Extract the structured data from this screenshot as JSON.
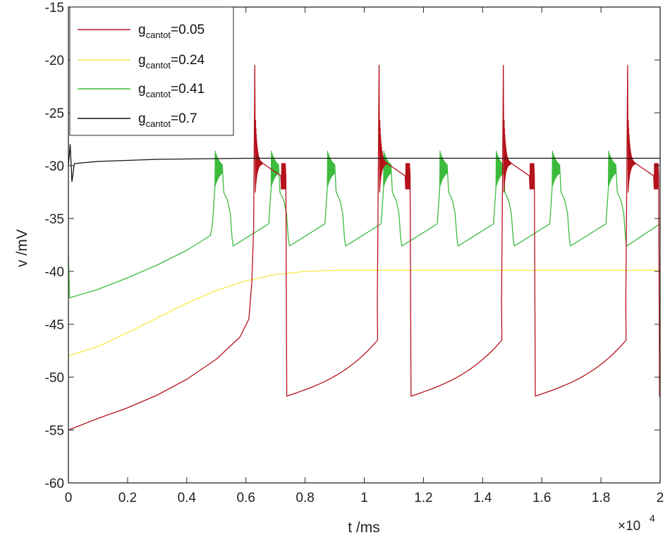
{
  "chart_data": {
    "type": "line",
    "xlabel": "t /ms",
    "ylabel": "v /mV",
    "x_exponent_label": "×10",
    "x_exponent_power": "4",
    "xlim": [
      0,
      20000
    ],
    "ylim": [
      -60,
      -15
    ],
    "x_ticks": [
      0,
      2000,
      4000,
      6000,
      8000,
      10000,
      12000,
      14000,
      16000,
      18000,
      20000
    ],
    "x_tick_labels": [
      "0",
      "0.2",
      "0.4",
      "0.6",
      "0.8",
      "1",
      "1.2",
      "1.4",
      "1.6",
      "1.8",
      "2"
    ],
    "y_ticks": [
      -60,
      -55,
      -50,
      -45,
      -40,
      -35,
      -30,
      -25,
      -20,
      -15
    ],
    "y_tick_labels": [
      "-60",
      "-55",
      "-50",
      "-45",
      "-40",
      "-35",
      "-30",
      "-25",
      "-20",
      "-15"
    ],
    "grid": false,
    "legend_position": "top-left",
    "series": [
      {
        "name_main": "g",
        "name_sub": "cantot",
        "name_value": "=0.05",
        "color": "#b5121b",
        "pattern": "bursting",
        "start_v": -55,
        "points": [
          [
            0,
            -55
          ],
          [
            1000,
            -53.9
          ],
          [
            2000,
            -52.9
          ],
          [
            3000,
            -51.7
          ],
          [
            4000,
            -50.2
          ],
          [
            5000,
            -48.3
          ],
          [
            5800,
            -46.2
          ],
          [
            6100,
            -44.5
          ],
          [
            6200,
            -41
          ]
        ],
        "spike_times": [
          6300,
          10500,
          14700,
          18900
        ],
        "spike_peak": -20.5,
        "plateau_level": -29.8,
        "plateau_end_level": -31,
        "plateau_durations": [
          1050,
          1050,
          1050,
          1050
        ],
        "trough": -51.8,
        "pre_spike_level": -46.5
      },
      {
        "name_main": "g",
        "name_sub": "cantot",
        "name_value": "=0.24",
        "color": "#f5e84a",
        "points": [
          [
            0,
            -48
          ],
          [
            1000,
            -47.1
          ],
          [
            2000,
            -45.8
          ],
          [
            3000,
            -44.4
          ],
          [
            4000,
            -43
          ],
          [
            5000,
            -41.8
          ],
          [
            6000,
            -40.9
          ],
          [
            7000,
            -40.3
          ],
          [
            8000,
            -40
          ],
          [
            9000,
            -39.9
          ],
          [
            20000,
            -39.9
          ]
        ]
      },
      {
        "name_main": "g",
        "name_sub": "cantot",
        "name_value": "=0.41",
        "color": "#3dbb3d",
        "pattern": "oscillating",
        "start_v": -42.5,
        "points": [
          [
            0,
            -38.5
          ],
          [
            40,
            -42.5
          ],
          [
            1000,
            -41.7
          ],
          [
            2000,
            -40.6
          ],
          [
            3000,
            -39.4
          ],
          [
            4000,
            -38
          ],
          [
            4800,
            -36.6
          ]
        ],
        "burst_times": [
          4950,
          6850,
          8750,
          10650,
          12550,
          14450,
          16350,
          18250
        ],
        "burst_peak": -30.9,
        "burst_end_level": -33,
        "burst_duration": 700,
        "trough": -37.6,
        "pre_burst_level": -35.5
      },
      {
        "name_main": "g",
        "name_sub": "cantot",
        "name_value": "=0.7",
        "color": "#111111",
        "points": [
          [
            0,
            -30
          ],
          [
            60,
            -28
          ],
          [
            120,
            -31.5
          ],
          [
            200,
            -29.8
          ],
          [
            1000,
            -29.6
          ],
          [
            3000,
            -29.4
          ],
          [
            6000,
            -29.3
          ],
          [
            20000,
            -29.3
          ]
        ]
      }
    ]
  }
}
